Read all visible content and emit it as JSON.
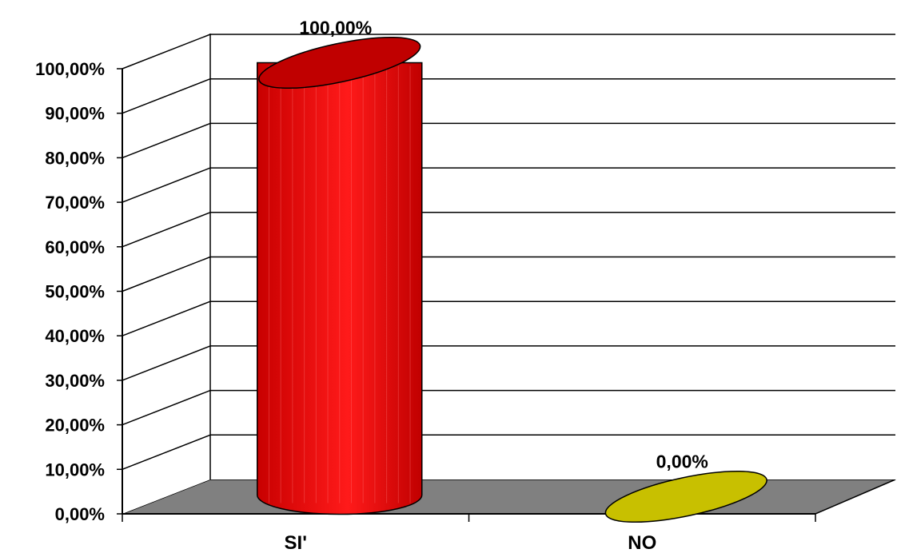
{
  "chart_data": {
    "type": "bar",
    "style": "3d-cylinder",
    "categories": [
      "SI'",
      "NO"
    ],
    "values": [
      100,
      0
    ],
    "value_labels": [
      "100,00%",
      "0,00%"
    ],
    "ylim": [
      0,
      100
    ],
    "yticks": [
      0,
      10,
      20,
      30,
      40,
      50,
      60,
      70,
      80,
      90,
      100
    ],
    "ytick_labels": [
      "0,00%",
      "10,00%",
      "20,00%",
      "30,00%",
      "40,00%",
      "50,00%",
      "60,00%",
      "70,00%",
      "80,00%",
      "90,00%",
      "100,00%"
    ],
    "bar_colors": [
      "#e80000",
      "#c8c000"
    ],
    "floor_color": "#808080",
    "grid": true,
    "legend": "none"
  }
}
